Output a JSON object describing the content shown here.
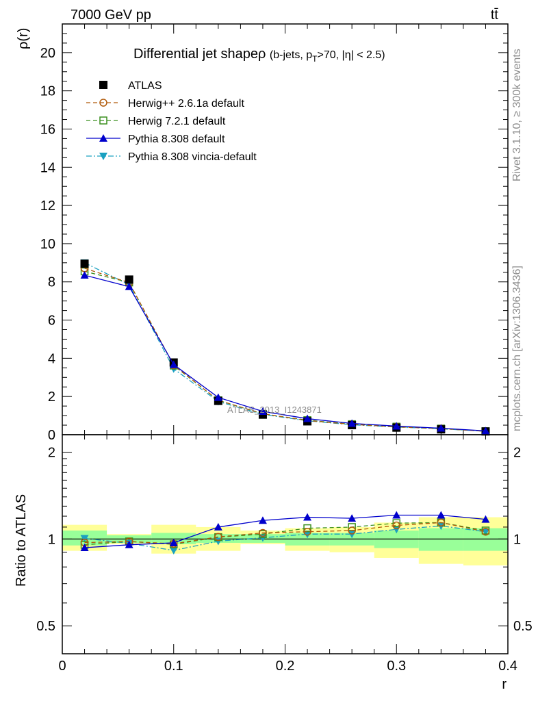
{
  "header": {
    "energy_label": "7000 GeV pp",
    "process_label": "tt̄"
  },
  "side_labels": {
    "rivet": "Rivet 3.1.10, ≥ 300k events",
    "source": "mcplots.cern.ch [arXiv:1306.3436]"
  },
  "watermark": "ATLAS_2013_I1243871",
  "colors": {
    "ATLAS": "#000000",
    "herwigpp": "#b05a0a",
    "herwig7": "#3a8f1e",
    "pythia": "#0000cc",
    "vincia": "#1aa0c0",
    "band_inner": "#99ff99",
    "band_outer": "#ffff99"
  },
  "chart_data": [
    {
      "id": "main",
      "type": "scatter",
      "title_main": "Differential jet shapeρ",
      "title_sub": "(b-jets, p",
      "title_sub_sub": "T",
      "title_sub_rest": ">70, |η| < 2.5)",
      "ylabel": "ρ(r)",
      "xlim": [
        0,
        0.4
      ],
      "ylim": [
        0,
        21.5
      ],
      "yticks": [
        0,
        2,
        4,
        6,
        8,
        10,
        12,
        14,
        16,
        18,
        20
      ],
      "yticklabels": [
        "0",
        "2",
        "4",
        "6",
        "8",
        "10",
        "12",
        "14",
        "16",
        "18",
        "20"
      ],
      "x": [
        0.02,
        0.06,
        0.1,
        0.14,
        0.18,
        0.22,
        0.26,
        0.3,
        0.34,
        0.38
      ],
      "series": [
        {
          "key": "ATLAS",
          "name": "ATLAS",
          "color": "#000000",
          "marker": "square-filled",
          "line": "none",
          "values": [
            8.95,
            8.12,
            3.78,
            1.77,
            1.05,
            0.7,
            0.5,
            0.37,
            0.28,
            0.17
          ]
        },
        {
          "key": "herwigpp",
          "name": "Herwig++ 2.6.1a default",
          "color": "#b05a0a",
          "marker": "circle-open",
          "line": "dashed",
          "values": [
            8.71,
            7.96,
            3.64,
            1.8,
            1.1,
            0.74,
            0.54,
            0.41,
            0.32,
            0.18
          ]
        },
        {
          "key": "herwig7",
          "name": "Herwig 7.2.1 default",
          "color": "#3a8f1e",
          "marker": "square-open",
          "line": "dashed",
          "values": [
            8.55,
            7.97,
            3.62,
            1.8,
            1.09,
            0.76,
            0.55,
            0.42,
            0.32,
            0.18
          ]
        },
        {
          "key": "pythia",
          "name": "Pythia 8.308 default",
          "color": "#0000cc",
          "marker": "triangle-up",
          "line": "solid",
          "values": [
            8.35,
            7.75,
            3.67,
            1.95,
            1.22,
            0.84,
            0.59,
            0.45,
            0.34,
            0.2
          ]
        },
        {
          "key": "vincia",
          "name": "Pythia 8.308 vincia-default",
          "color": "#1aa0c0",
          "marker": "triangle-down",
          "line": "dashdot",
          "values": [
            9.0,
            7.85,
            3.45,
            1.74,
            1.06,
            0.73,
            0.52,
            0.4,
            0.31,
            0.18
          ]
        }
      ]
    },
    {
      "id": "ratio",
      "type": "line",
      "ylabel": "Ratio to ATLAS",
      "xlabel": "r",
      "xlim": [
        0,
        0.4
      ],
      "ylim": [
        0.4,
        2.3
      ],
      "ylog": true,
      "yticks": [
        0.5,
        1,
        2
      ],
      "yticklabels": [
        "0.5",
        "1",
        "2"
      ],
      "xticks": [
        0,
        0.1,
        0.2,
        0.3,
        0.4
      ],
      "xticklabels": [
        "0",
        "0.1",
        "0.2",
        "0.3",
        "0.4"
      ],
      "bins": [
        [
          0,
          0.04
        ],
        [
          0.04,
          0.08
        ],
        [
          0.08,
          0.12
        ],
        [
          0.12,
          0.16
        ],
        [
          0.16,
          0.2
        ],
        [
          0.2,
          0.24
        ],
        [
          0.24,
          0.28
        ],
        [
          0.28,
          0.32
        ],
        [
          0.32,
          0.36
        ],
        [
          0.36,
          0.4
        ]
      ],
      "band_inner": [
        [
          0.95,
          1.07
        ],
        [
          0.97,
          1.03
        ],
        [
          0.96,
          1.05
        ],
        [
          0.97,
          1.04
        ],
        [
          0.97,
          1.04
        ],
        [
          0.95,
          1.05
        ],
        [
          0.95,
          1.05
        ],
        [
          0.93,
          1.07
        ],
        [
          0.91,
          1.09
        ],
        [
          0.91,
          1.09
        ]
      ],
      "band_outer": [
        [
          0.91,
          1.12
        ],
        [
          0.96,
          1.04
        ],
        [
          0.89,
          1.12
        ],
        [
          0.91,
          1.1
        ],
        [
          0.96,
          1.07
        ],
        [
          0.91,
          1.09
        ],
        [
          0.9,
          1.1
        ],
        [
          0.86,
          1.14
        ],
        [
          0.82,
          1.19
        ],
        [
          0.81,
          1.19
        ]
      ],
      "series": [
        {
          "key": "herwigpp",
          "color": "#b05a0a",
          "marker": "circle-open",
          "line": "dashed",
          "values": [
            0.972,
            0.98,
            0.963,
            1.017,
            1.05,
            1.06,
            1.07,
            1.115,
            1.14,
            1.06
          ]
        },
        {
          "key": "herwig7",
          "color": "#3a8f1e",
          "marker": "square-open",
          "line": "dashed",
          "values": [
            0.955,
            0.981,
            0.958,
            1.015,
            1.04,
            1.09,
            1.1,
            1.135,
            1.14,
            1.07
          ]
        },
        {
          "key": "pythia",
          "color": "#0000cc",
          "marker": "triangle-up",
          "line": "solid",
          "values": [
            0.933,
            0.955,
            0.97,
            1.1,
            1.16,
            1.19,
            1.18,
            1.21,
            1.21,
            1.17
          ]
        },
        {
          "key": "vincia",
          "color": "#1aa0c0",
          "marker": "triangle-down",
          "line": "dashdot",
          "values": [
            1.005,
            0.966,
            0.913,
            0.983,
            1.01,
            1.04,
            1.04,
            1.08,
            1.11,
            1.06
          ]
        }
      ]
    }
  ]
}
